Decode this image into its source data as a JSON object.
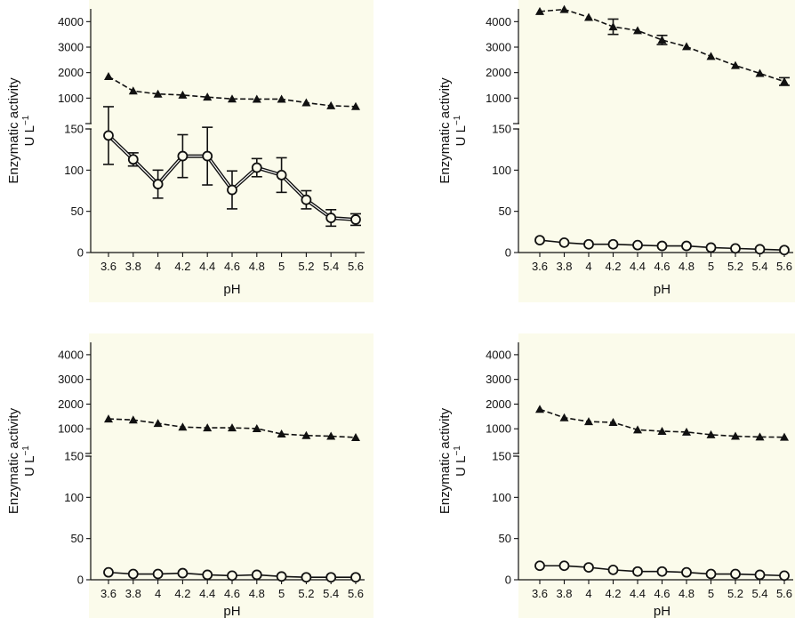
{
  "figure": {
    "background_color": "#fbfbeb"
  },
  "chart_data": [
    {
      "type": "line",
      "panel": "top-left",
      "xlabel": "pH",
      "ylabel_line1": "Enzymatic activity",
      "ylabel_line2": "U L",
      "ylabel_superscript": "−1",
      "x": [
        "3.6",
        "3.8",
        "4",
        "4.2",
        "4.4",
        "4.6",
        "4.8",
        "5",
        "5.2",
        "5.4",
        "5.6"
      ],
      "axis_break": true,
      "lower_ylim": [
        0,
        150
      ],
      "lower_yticks": [
        "0",
        "50",
        "100",
        "150"
      ],
      "upper_ylim": [
        0,
        4500
      ],
      "upper_yticks": [
        "1000",
        "2000",
        "3000",
        "4000"
      ],
      "series": [
        {
          "marker": "triangle",
          "line_style": "dashed",
          "axis": "upper",
          "values": [
            1850,
            1280,
            1160,
            1120,
            1040,
            970,
            960,
            960,
            820,
            700,
            670
          ],
          "errors": [
            0,
            0,
            0,
            0,
            0,
            0,
            0,
            0,
            0,
            0,
            0
          ]
        },
        {
          "marker": "circle",
          "line_style": "solid-double",
          "axis": "lower",
          "values": [
            142,
            113,
            83,
            117,
            117,
            76,
            103,
            94,
            64,
            42,
            40
          ],
          "errors": [
            35,
            8,
            17,
            26,
            35,
            23,
            11,
            21,
            11,
            10,
            7
          ]
        }
      ]
    },
    {
      "type": "line",
      "panel": "top-right",
      "xlabel": "pH",
      "ylabel_line1": "Enzymatic activity",
      "ylabel_line2": "U L",
      "ylabel_superscript": "−1",
      "x": [
        "3.6",
        "3.8",
        "4",
        "4.2",
        "4.4",
        "4.6",
        "4.8",
        "5",
        "5.2",
        "5.4",
        "5.6"
      ],
      "axis_break": true,
      "lower_ylim": [
        0,
        150
      ],
      "lower_yticks": [
        "0",
        "50",
        "100",
        "150"
      ],
      "upper_ylim": [
        0,
        4500
      ],
      "upper_yticks": [
        "1000",
        "2000",
        "3000",
        "4000"
      ],
      "series": [
        {
          "marker": "triangle",
          "line_style": "dashed",
          "axis": "upper",
          "values": [
            4400,
            4480,
            4170,
            3800,
            3650,
            3280,
            3020,
            2640,
            2280,
            1970,
            1650
          ],
          "errors": [
            0,
            0,
            0,
            300,
            0,
            180,
            0,
            0,
            0,
            0,
            150
          ]
        },
        {
          "marker": "circle",
          "line_style": "solid",
          "axis": "lower",
          "values": [
            15,
            12,
            10,
            10,
            9,
            8,
            8,
            6,
            5,
            4,
            3
          ],
          "errors": [
            0,
            0,
            0,
            0,
            0,
            0,
            0,
            0,
            0,
            0,
            0
          ]
        }
      ]
    },
    {
      "type": "line",
      "panel": "bottom-left",
      "xlabel": "pH",
      "ylabel_line1": "Enzymatic activity",
      "ylabel_line2": "U L",
      "ylabel_superscript": "−1",
      "x": [
        "3.6",
        "3.8",
        "4",
        "4.2",
        "4.4",
        "4.6",
        "4.8",
        "5",
        "5.2",
        "5.4",
        "5.6"
      ],
      "axis_break": true,
      "lower_ylim": [
        0,
        150
      ],
      "lower_yticks": [
        "0",
        "50",
        "100",
        "150"
      ],
      "upper_ylim": [
        0,
        4500
      ],
      "upper_yticks": [
        "1000",
        "2000",
        "3000",
        "4000"
      ],
      "series": [
        {
          "marker": "triangle",
          "line_style": "dashed",
          "axis": "upper",
          "values": [
            1400,
            1360,
            1220,
            1070,
            1040,
            1040,
            1010,
            790,
            730,
            700,
            650
          ],
          "errors": [
            0,
            0,
            0,
            0,
            0,
            0,
            0,
            0,
            0,
            0,
            0
          ]
        },
        {
          "marker": "circle",
          "line_style": "solid",
          "axis": "lower",
          "values": [
            9,
            7,
            7,
            8,
            6,
            5,
            6,
            4,
            3,
            3,
            3
          ],
          "errors": [
            0,
            0,
            0,
            0,
            0,
            0,
            0,
            0,
            0,
            0,
            0
          ]
        }
      ]
    },
    {
      "type": "line",
      "panel": "bottom-right",
      "xlabel": "pH",
      "ylabel_line1": "Enzymatic activity",
      "ylabel_line2": "U L",
      "ylabel_superscript": "−1",
      "x": [
        "3.6",
        "3.8",
        "4",
        "4.2",
        "4.4",
        "4.6",
        "4.8",
        "5",
        "5.2",
        "5.4",
        "5.6"
      ],
      "axis_break": true,
      "lower_ylim": [
        0,
        150
      ],
      "lower_yticks": [
        "0",
        "50",
        "100",
        "150"
      ],
      "upper_ylim": [
        0,
        4500
      ],
      "upper_yticks": [
        "1000",
        "2000",
        "3000",
        "4000"
      ],
      "series": [
        {
          "marker": "triangle",
          "line_style": "dashed",
          "axis": "upper",
          "values": [
            1790,
            1450,
            1290,
            1260,
            960,
            900,
            870,
            760,
            700,
            670,
            660
          ],
          "errors": [
            0,
            0,
            0,
            0,
            0,
            0,
            0,
            0,
            0,
            0,
            0
          ]
        },
        {
          "marker": "circle",
          "line_style": "solid",
          "axis": "lower",
          "values": [
            17,
            17,
            15,
            12,
            10,
            10,
            9,
            7,
            7,
            6,
            5
          ],
          "errors": [
            0,
            0,
            0,
            0,
            0,
            0,
            0,
            0,
            0,
            0,
            0
          ]
        }
      ]
    }
  ]
}
